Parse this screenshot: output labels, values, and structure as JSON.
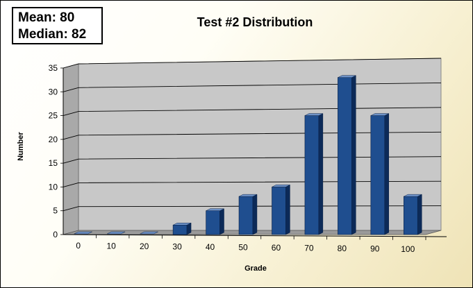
{
  "stats": {
    "mean": "Mean: 80",
    "median": "Median: 82"
  },
  "colors": {
    "bar_front": "#1f4e8f",
    "bar_side": "#0c2a58",
    "bar_top": "#6f93c8",
    "wall": "#c8c8c8",
    "gridline": "#000000"
  },
  "chart_data": {
    "type": "bar",
    "title": "Test #2 Distribution",
    "xlabel": "Grade",
    "ylabel": "Number",
    "categories": [
      "0",
      "10",
      "20",
      "30",
      "40",
      "50",
      "60",
      "70",
      "80",
      "90",
      "100"
    ],
    "values": [
      0,
      0,
      0,
      2,
      5,
      8,
      10,
      25,
      33,
      25,
      8
    ],
    "ylim": [
      0,
      35
    ],
    "yticks": [
      "0",
      "5",
      "10",
      "15",
      "20",
      "25",
      "30",
      "35"
    ],
    "grid": true,
    "legend": "none",
    "style": "3d-column"
  }
}
